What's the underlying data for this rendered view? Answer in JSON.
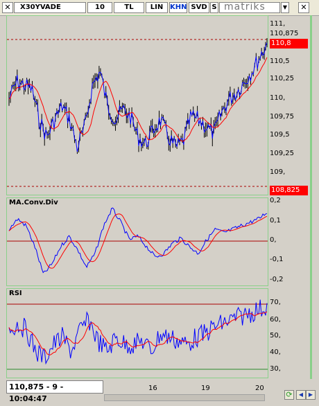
{
  "toolbar": {
    "symbol": "X30YVADE",
    "period": "10",
    "currency": "TL",
    "scale": "LIN",
    "khn": "KHN",
    "svd": "SVD",
    "s_label": "S",
    "brand": "matriks",
    "close_icon": "close-icon",
    "dropdown_icon": "chevron-down-icon"
  },
  "colors": {
    "price": "#0000ff",
    "average": "#ff0000",
    "level_line": "#aa0000",
    "panel_border": "#8ad08a",
    "badge": "#ff0000"
  },
  "price_panel": {
    "ticks": [
      "111,",
      "110,875",
      "110,5",
      "110,25",
      "110,",
      "109,75",
      "109,5",
      "109,25",
      "109,"
    ],
    "last_badge": "110,8",
    "low_badge": "108,825"
  },
  "macd_panel": {
    "title": "MA.Conv.Div",
    "ticks": [
      "0,2",
      "0,1",
      "0,",
      "-0,1",
      "-0,2"
    ]
  },
  "rsi_panel": {
    "title": "RSI",
    "ticks": [
      "70,",
      "60,",
      "50,",
      "40,",
      "30,"
    ]
  },
  "status": {
    "readout": "110,875 - 9 - 10:04:47"
  },
  "time_axis": {
    "labels": [
      "16",
      "19",
      "20"
    ]
  },
  "nav": {
    "refresh_icon": "refresh-icon",
    "left_icon": "arrow-left-icon",
    "right_icon": "arrow-right-icon"
  }
}
